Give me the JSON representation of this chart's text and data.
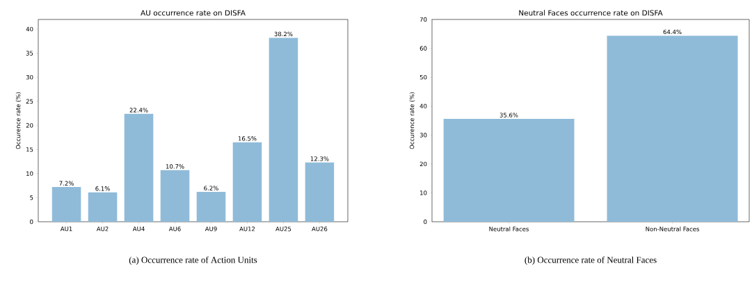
{
  "chart_data": [
    {
      "type": "bar",
      "title": "AU occurrence rate on DISFA",
      "ylabel": "Occurence rate (%)",
      "categories": [
        "AU1",
        "AU2",
        "AU4",
        "AU6",
        "AU9",
        "AU12",
        "AU25",
        "AU26"
      ],
      "values": [
        7.2,
        6.1,
        22.4,
        10.7,
        6.2,
        16.5,
        38.2,
        12.3
      ],
      "value_labels": [
        "7.2%",
        "6.1%",
        "22.4%",
        "10.7%",
        "6.2%",
        "16.5%",
        "38.2%",
        "12.3%"
      ],
      "color": "#8fbbd9",
      "ylim": [
        0,
        42
      ],
      "yticks": [
        0,
        5,
        10,
        15,
        20,
        25,
        30,
        35,
        40
      ],
      "annotations": [
        "(a) Occurrence rate of Action Units"
      ]
    },
    {
      "type": "bar",
      "title": "Neutral Faces occurrence rate on DISFA",
      "ylabel": "Occurence rate (%)",
      "categories": [
        "Neutral Faces",
        "Non-Neutral Faces"
      ],
      "values": [
        35.6,
        64.4
      ],
      "value_labels": [
        "35.6%",
        "64.4%"
      ],
      "color": "#8fbbd9",
      "ylim": [
        0,
        70
      ],
      "yticks": [
        0,
        10,
        20,
        30,
        40,
        50,
        60,
        70
      ],
      "annotations": [
        "(b) Occurrence rate of Neutral Faces"
      ]
    }
  ]
}
